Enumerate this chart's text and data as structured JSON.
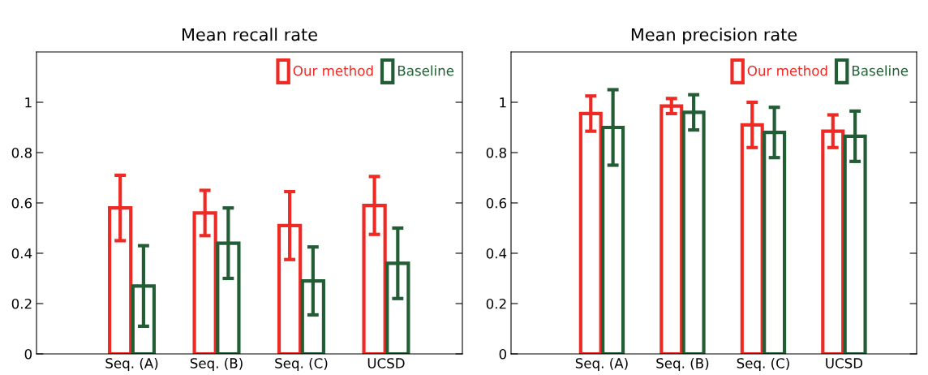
{
  "chart_data": [
    {
      "type": "bar",
      "title": "Mean recall rate",
      "categories": [
        "Seq. (A)",
        "Seq. (B)",
        "Seq. (C)",
        "UCSD"
      ],
      "series": [
        {
          "name": "Our method",
          "color": "#ee2a24",
          "values": [
            0.58,
            0.56,
            0.51,
            0.59
          ],
          "errors": [
            0.13,
            0.09,
            0.135,
            0.115
          ]
        },
        {
          "name": "Baseline",
          "color": "#235d35",
          "values": [
            0.27,
            0.44,
            0.29,
            0.36
          ],
          "errors": [
            0.16,
            0.14,
            0.135,
            0.14
          ]
        }
      ],
      "ylim": [
        0,
        1.2
      ],
      "yticks": [
        0,
        0.2,
        0.4,
        0.6,
        0.8,
        1
      ],
      "grid": false,
      "legend": "top right"
    },
    {
      "type": "bar",
      "title": "Mean precision rate",
      "categories": [
        "Seq. (A)",
        "Seq. (B)",
        "Seq. (C)",
        "UCSD"
      ],
      "series": [
        {
          "name": "Our method",
          "color": "#ee2a24",
          "values": [
            0.955,
            0.985,
            0.91,
            0.885
          ],
          "errors": [
            0.07,
            0.03,
            0.09,
            0.065
          ]
        },
        {
          "name": "Baseline",
          "color": "#235d35",
          "values": [
            0.9,
            0.96,
            0.88,
            0.865
          ],
          "errors": [
            0.15,
            0.07,
            0.1,
            0.1
          ]
        }
      ],
      "ylim": [
        0,
        1.2
      ],
      "yticks": [
        0,
        0.2,
        0.4,
        0.6,
        0.8,
        1
      ],
      "grid": false,
      "legend": "top right"
    }
  ]
}
